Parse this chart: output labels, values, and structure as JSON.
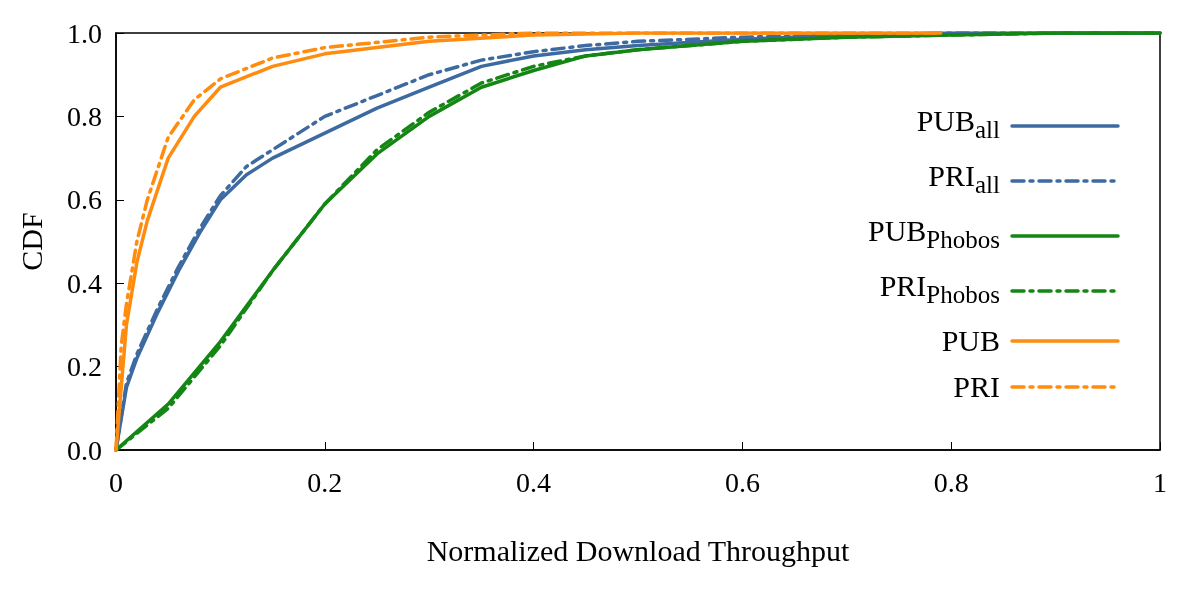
{
  "chart_data": {
    "type": "line",
    "xlabel": "Normalized Download Throughput",
    "ylabel": "CDF",
    "xlim": [
      0,
      1
    ],
    "ylim": [
      0,
      1
    ],
    "xticks": [
      0,
      0.2,
      0.4,
      0.6,
      0.8,
      1
    ],
    "yticks": [
      {
        "value": 0,
        "label": "0.0"
      },
      {
        "value": 0.2,
        "label": "0.2"
      },
      {
        "value": 0.4,
        "label": "0.4"
      },
      {
        "value": 0.6,
        "label": "0.6"
      },
      {
        "value": 0.8,
        "label": "0.8"
      },
      {
        "value": 1,
        "label": "1.0"
      }
    ],
    "grid": false,
    "legend": "right",
    "marker": "none",
    "series": [
      {
        "name": "PUB$_{all}$",
        "color": "#3d6aa0",
        "line_style": "solid",
        "x": [
          0,
          0.01,
          0.02,
          0.04,
          0.06,
          0.08,
          0.1,
          0.125,
          0.15,
          0.2,
          0.25,
          0.3,
          0.35,
          0.4,
          0.45,
          0.5,
          0.6,
          0.7,
          0.8,
          1
        ],
        "values": [
          0,
          0.15,
          0.22,
          0.33,
          0.43,
          0.52,
          0.6,
          0.66,
          0.7,
          0.76,
          0.82,
          0.87,
          0.92,
          0.945,
          0.96,
          0.97,
          0.985,
          0.995,
          1,
          1
        ]
      },
      {
        "name": "PRI$_{all}$",
        "color": "#3d6aa0",
        "line_style": "dashed",
        "x": [
          0,
          0.01,
          0.02,
          0.04,
          0.06,
          0.08,
          0.1,
          0.125,
          0.15,
          0.2,
          0.25,
          0.3,
          0.35,
          0.4,
          0.45,
          0.5,
          0.6,
          0.7,
          0.8,
          1
        ],
        "values": [
          0,
          0.16,
          0.23,
          0.34,
          0.44,
          0.53,
          0.61,
          0.68,
          0.72,
          0.8,
          0.85,
          0.9,
          0.935,
          0.955,
          0.97,
          0.98,
          0.99,
          0.995,
          1,
          1
        ]
      },
      {
        "name": "PUB$_{Phobos}$",
        "color": "#138613",
        "line_style": "solid",
        "x": [
          0,
          0.05,
          0.1,
          0.15,
          0.2,
          0.25,
          0.3,
          0.35,
          0.4,
          0.45,
          0.5,
          0.6,
          0.7,
          0.8,
          0.9,
          1
        ],
        "values": [
          0,
          0.11,
          0.26,
          0.43,
          0.59,
          0.71,
          0.8,
          0.87,
          0.91,
          0.945,
          0.96,
          0.98,
          0.99,
          0.995,
          1,
          1
        ]
      },
      {
        "name": "PRI$_{Phobos}$",
        "color": "#138613",
        "line_style": "dashed",
        "x": [
          0,
          0.05,
          0.1,
          0.15,
          0.2,
          0.25,
          0.3,
          0.35,
          0.4,
          0.45,
          0.5,
          0.6,
          0.7,
          0.8,
          0.9,
          1
        ],
        "values": [
          0,
          0.1,
          0.25,
          0.43,
          0.59,
          0.72,
          0.81,
          0.88,
          0.92,
          0.945,
          0.96,
          0.98,
          0.99,
          0.995,
          1,
          1
        ]
      },
      {
        "name": "PUB",
        "color": "#ff8c0f",
        "line_style": "solid",
        "x": [
          0,
          0.01,
          0.02,
          0.03,
          0.05,
          0.075,
          0.1,
          0.15,
          0.2,
          0.3,
          0.4,
          0.5,
          0.79
        ],
        "values": [
          0,
          0.3,
          0.45,
          0.55,
          0.7,
          0.8,
          0.87,
          0.92,
          0.95,
          0.98,
          0.995,
          1,
          1
        ]
      },
      {
        "name": "PRI",
        "color": "#ff8c0f",
        "line_style": "dashed",
        "x": [
          0,
          0.005,
          0.01,
          0.02,
          0.03,
          0.05,
          0.075,
          0.1,
          0.15,
          0.2,
          0.3,
          0.4,
          0.79
        ],
        "values": [
          0,
          0.25,
          0.35,
          0.5,
          0.6,
          0.75,
          0.84,
          0.89,
          0.94,
          0.965,
          0.99,
          1,
          1
        ]
      }
    ]
  }
}
